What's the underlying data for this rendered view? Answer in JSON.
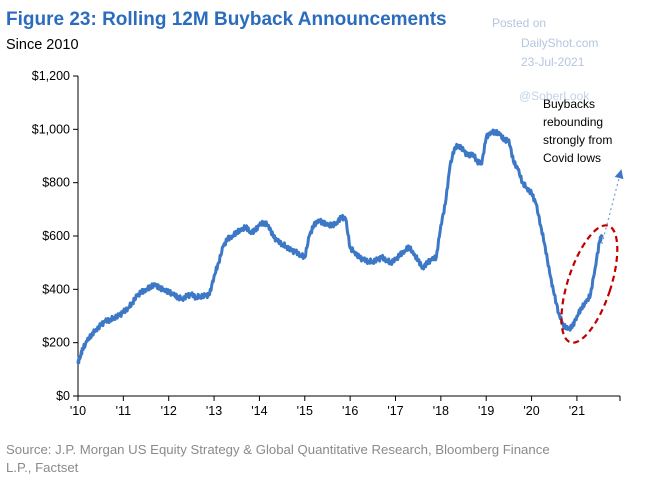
{
  "chart_data": {
    "type": "line",
    "title": "Figure 23: Rolling 12M Buyback Announcements",
    "subtitle": "Since 2010",
    "xlabel": "",
    "ylabel": "",
    "xlim": [
      2010.0,
      2021.95
    ],
    "ylim": [
      0,
      1200
    ],
    "y_ticks": [
      {
        "value": 0,
        "label": "$0"
      },
      {
        "value": 200,
        "label": "$200"
      },
      {
        "value": 400,
        "label": "$400"
      },
      {
        "value": 600,
        "label": "$600"
      },
      {
        "value": 800,
        "label": "$800"
      },
      {
        "value": 1000,
        "label": "$1,000"
      },
      {
        "value": 1200,
        "label": "$1,200"
      }
    ],
    "x_ticks": [
      {
        "value": 2010,
        "label": "'10"
      },
      {
        "value": 2011,
        "label": "'11"
      },
      {
        "value": 2012,
        "label": "'12"
      },
      {
        "value": 2013,
        "label": "'13"
      },
      {
        "value": 2014,
        "label": "'14"
      },
      {
        "value": 2015,
        "label": "'15"
      },
      {
        "value": 2016,
        "label": "'16"
      },
      {
        "value": 2017,
        "label": "'17"
      },
      {
        "value": 2018,
        "label": "'18"
      },
      {
        "value": 2019,
        "label": "'19"
      },
      {
        "value": 2020,
        "label": "'20"
      },
      {
        "value": 2021,
        "label": "'21"
      }
    ],
    "grid": false,
    "color": "#3c78c6",
    "series": [
      {
        "name": "Rolling 12M Buyback Announcements",
        "x": [
          2010.0,
          2010.05,
          2010.1,
          2010.2,
          2010.3,
          2010.4,
          2010.5,
          2010.6,
          2010.7,
          2010.8,
          2010.9,
          2011.0,
          2011.1,
          2011.2,
          2011.3,
          2011.4,
          2011.5,
          2011.6,
          2011.7,
          2011.8,
          2011.9,
          2012.0,
          2012.1,
          2012.2,
          2012.3,
          2012.4,
          2012.5,
          2012.6,
          2012.7,
          2012.8,
          2012.9,
          2013.0,
          2013.1,
          2013.2,
          2013.3,
          2013.4,
          2013.5,
          2013.6,
          2013.7,
          2013.8,
          2013.9,
          2014.0,
          2014.1,
          2014.2,
          2014.3,
          2014.4,
          2014.5,
          2014.6,
          2014.7,
          2014.8,
          2014.9,
          2015.0,
          2015.1,
          2015.2,
          2015.3,
          2015.4,
          2015.5,
          2015.6,
          2015.7,
          2015.8,
          2015.9,
          2016.0,
          2016.1,
          2016.2,
          2016.3,
          2016.4,
          2016.5,
          2016.6,
          2016.7,
          2016.8,
          2016.9,
          2017.0,
          2017.1,
          2017.2,
          2017.3,
          2017.4,
          2017.5,
          2017.6,
          2017.7,
          2017.8,
          2017.9,
          2018.0,
          2018.1,
          2018.2,
          2018.3,
          2018.4,
          2018.5,
          2018.6,
          2018.7,
          2018.8,
          2018.9,
          2019.0,
          2019.1,
          2019.2,
          2019.3,
          2019.4,
          2019.5,
          2019.6,
          2019.7,
          2019.8,
          2019.9,
          2020.0,
          2020.1,
          2020.2,
          2020.3,
          2020.4,
          2020.5,
          2020.6,
          2020.7,
          2020.8,
          2020.9,
          2021.0,
          2021.1,
          2021.2,
          2021.3,
          2021.4,
          2021.5,
          2021.55
        ],
        "values": [
          125,
          150,
          175,
          205,
          230,
          250,
          265,
          280,
          285,
          295,
          300,
          315,
          330,
          350,
          375,
          390,
          400,
          410,
          415,
          405,
          400,
          390,
          380,
          370,
          365,
          375,
          380,
          370,
          375,
          375,
          380,
          450,
          500,
          560,
          590,
          600,
          615,
          620,
          635,
          615,
          620,
          640,
          650,
          640,
          600,
          580,
          570,
          560,
          545,
          540,
          530,
          520,
          600,
          640,
          660,
          650,
          640,
          640,
          650,
          670,
          665,
          555,
          540,
          520,
          510,
          505,
          505,
          510,
          520,
          510,
          500,
          510,
          530,
          545,
          560,
          530,
          510,
          480,
          500,
          510,
          520,
          640,
          720,
          860,
          930,
          940,
          920,
          900,
          910,
          880,
          870,
          970,
          990,
          990,
          980,
          960,
          960,
          880,
          850,
          800,
          780,
          760,
          720,
          640,
          560,
          460,
          380,
          310,
          265,
          250,
          260,
          300,
          330,
          350,
          380,
          480,
          580,
          600
        ]
      }
    ],
    "annotations": {
      "callout": [
        "Buybacks",
        "rebounding",
        "strongly from",
        "Covid lows"
      ],
      "highlight": {
        "x_range": [
          2020.8,
          2021.75
        ],
        "y_range": [
          190,
          650
        ],
        "style": "dashed-ellipse",
        "color": "#c00000"
      },
      "arrow": {
        "from": [
          2021.55,
          570
        ],
        "to": [
          2021.98,
          850
        ],
        "style": "dotted"
      }
    },
    "watermark": [
      "Posted on",
      "DailyShot.com",
      "23-Jul-2021",
      "@SoberLook"
    ],
    "source": [
      "Source: J.P. Morgan US Equity Strategy & Global Quantitative Research, Bloomberg Finance",
      "L.P., Factset"
    ]
  }
}
